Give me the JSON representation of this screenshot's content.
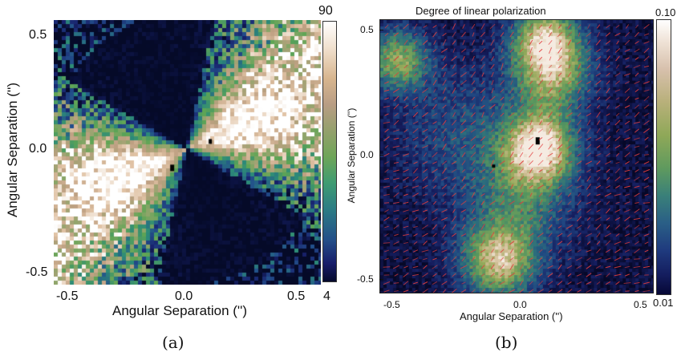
{
  "panel_a": {
    "caption": "(a)",
    "xlabel": "Angular Separation ('')",
    "ylabel": "Angular Separation ('')",
    "xticks": [
      "-0.5",
      "0.0",
      "0.5"
    ],
    "yticks": [
      "0.5",
      "0.0",
      "-0.5"
    ],
    "colorbar": {
      "max": "90",
      "min": "4"
    }
  },
  "panel_b": {
    "caption": "(b)",
    "title": "Degree of linear polarization",
    "xlabel": "Angular Separation ('')",
    "ylabel": "Angular Separation ('')",
    "xticks": [
      "-0.5",
      "0.0",
      "0.5"
    ],
    "yticks": [
      "0.5",
      "0.0",
      "-0.5"
    ],
    "colorbar": {
      "max": "0.10",
      "min": "0.01"
    }
  }
}
